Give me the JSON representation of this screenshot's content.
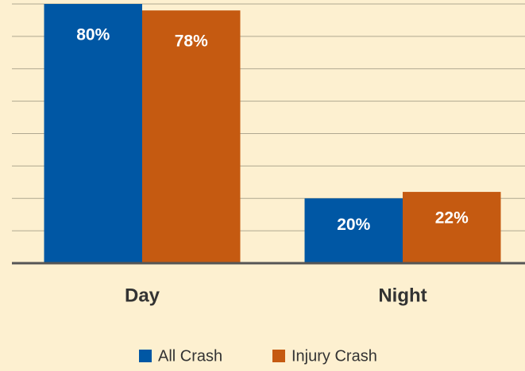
{
  "chart_data": {
    "type": "bar",
    "categories": [
      "Day",
      "Night"
    ],
    "series": [
      {
        "name": "All Crash",
        "color": "#0057a4",
        "values": [
          80,
          20
        ],
        "value_labels": [
          "80%",
          "20%"
        ]
      },
      {
        "name": "Injury Crash",
        "color": "#c55a11",
        "values": [
          78,
          22
        ],
        "value_labels": [
          "78%",
          "22%"
        ]
      }
    ],
    "ylim": [
      0,
      80
    ],
    "yticks": [
      0,
      10,
      20,
      30,
      40,
      50,
      60,
      70,
      80
    ],
    "grid": true,
    "legend": "bottom"
  }
}
